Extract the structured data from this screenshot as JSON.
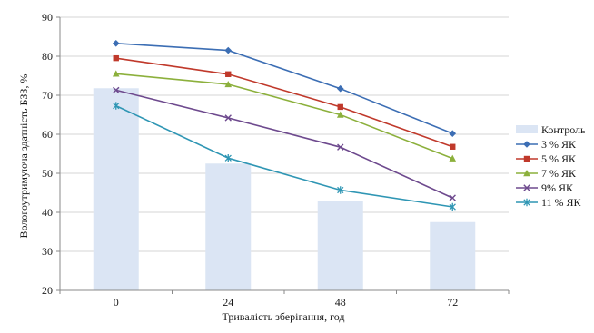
{
  "chart_data": {
    "type": "bar",
    "categories": [
      "0",
      "24",
      "48",
      "72"
    ],
    "x": [
      0,
      24,
      48,
      72
    ],
    "xlabel": "Тривалість зберігання, год",
    "ylabel": "Вологоутримуюча здатність БЗЗ, %",
    "ylim": [
      20,
      90
    ],
    "yticks": [
      20,
      30,
      40,
      50,
      60,
      70,
      80,
      90
    ],
    "grid": true,
    "legend_position": "right",
    "bar_series": {
      "name": "Контроль",
      "values": [
        71.8,
        52.5,
        43.0,
        37.5
      ],
      "color": "#dbe5f4"
    },
    "series": [
      {
        "name": "3 % ЯК",
        "type": "line",
        "values": [
          83.3,
          81.5,
          71.7,
          60.2
        ],
        "color": "#3c6eb4",
        "marker": "diamond"
      },
      {
        "name": "5 % ЯК",
        "type": "line",
        "values": [
          79.5,
          75.4,
          67.0,
          56.8
        ],
        "color": "#c0392b",
        "marker": "square"
      },
      {
        "name": "7 % ЯК",
        "type": "line",
        "values": [
          75.5,
          72.8,
          65.0,
          53.8
        ],
        "color": "#8cb03c",
        "marker": "triangle"
      },
      {
        "name": "9% ЯК",
        "type": "line",
        "values": [
          71.3,
          64.2,
          56.7,
          43.7
        ],
        "color": "#6e4a8e",
        "marker": "x"
      },
      {
        "name": "11 % ЯК",
        "type": "line",
        "values": [
          67.3,
          53.9,
          45.7,
          41.4
        ],
        "color": "#2f96b4",
        "marker": "star"
      }
    ]
  }
}
